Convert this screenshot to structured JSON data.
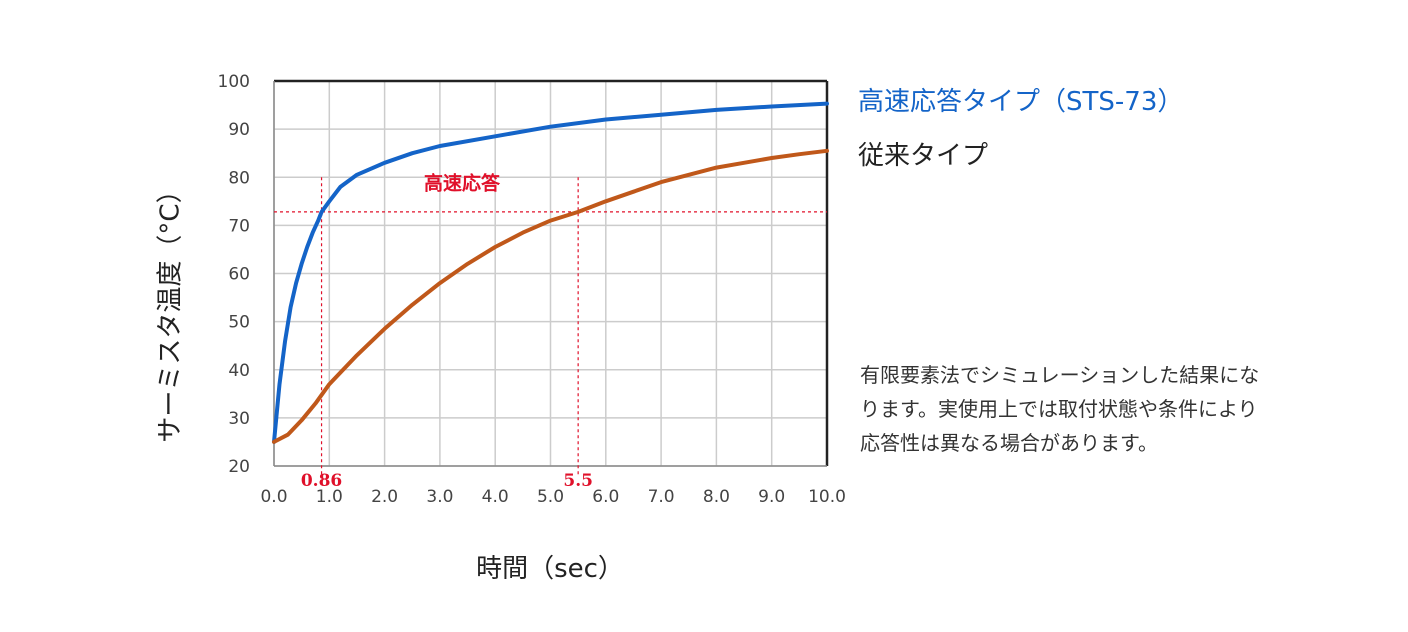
{
  "chart_data": {
    "type": "line",
    "xlabel": "時間（sec）",
    "ylabel": "サーミスタ温度（°C）",
    "xlim": [
      0,
      10
    ],
    "ylim": [
      20,
      100
    ],
    "x_ticks": [
      "0.0",
      "1.0",
      "2.0",
      "3.0",
      "4.0",
      "5.0",
      "6.0",
      "7.0",
      "8.0",
      "9.0",
      "10.0"
    ],
    "y_ticks": [
      "20",
      "30",
      "40",
      "50",
      "60",
      "70",
      "80",
      "90",
      "100"
    ],
    "grid": true,
    "legend_position": "right",
    "series": [
      {
        "name": "高速応答タイプ（STS-73）",
        "color": "#1464c8",
        "x": [
          0,
          0.1,
          0.2,
          0.3,
          0.4,
          0.5,
          0.6,
          0.7,
          0.8,
          0.86,
          1.0,
          1.2,
          1.5,
          2.0,
          2.5,
          3.0,
          4.0,
          5.0,
          6.0,
          7.0,
          8.0,
          9.0,
          10.0
        ],
        "y": [
          25,
          37,
          46,
          53,
          58,
          62,
          65.5,
          68.5,
          71,
          72.8,
          75,
          78,
          80.5,
          83,
          85,
          86.5,
          88.5,
          90.5,
          92,
          93,
          94,
          94.7,
          95.3
        ]
      },
      {
        "name": "従来タイプ",
        "color": "#c0581a",
        "x": [
          0,
          0.25,
          0.5,
          0.75,
          1.0,
          1.5,
          2.0,
          2.5,
          3.0,
          3.5,
          4.0,
          4.5,
          5.0,
          5.5,
          6.0,
          6.5,
          7.0,
          7.5,
          8.0,
          8.5,
          9.0,
          9.5,
          10.0
        ],
        "y": [
          25,
          26.5,
          29.5,
          33,
          37,
          43,
          48.5,
          53.5,
          58,
          62,
          65.5,
          68.5,
          71,
          72.8,
          75,
          77,
          79,
          80.5,
          82,
          83,
          84,
          84.8,
          85.5
        ]
      }
    ],
    "annotations": {
      "label": "高速応答",
      "threshold_y": 72.8,
      "marker_1": {
        "x": 0.86,
        "label": "0.86"
      },
      "marker_2": {
        "x": 5.5,
        "label": "5.5"
      },
      "color": "#e0102a"
    }
  },
  "note_lines": [
    "有限要素法でシミュレーションした結果にな",
    "ります。実使用上では取付状態や条件により",
    "応答性は異なる場合があります。"
  ],
  "colors": {
    "grid": "#cccccc",
    "frame": "#222222",
    "tick_text": "#444444"
  }
}
